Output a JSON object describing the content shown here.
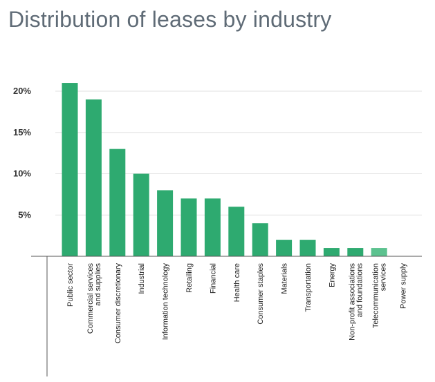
{
  "chart_data": {
    "type": "bar",
    "title": "Distribution of leases by industry",
    "xlabel": "",
    "ylabel": "",
    "ylim": [
      0,
      22
    ],
    "yticks": [
      {
        "value": 5,
        "label": "5%"
      },
      {
        "value": 10,
        "label": "10%"
      },
      {
        "value": 15,
        "label": "15%"
      },
      {
        "value": 20,
        "label": "20%"
      }
    ],
    "grid": true,
    "categories": [
      [
        "Public sector"
      ],
      [
        "Commercial services",
        "and supplies"
      ],
      [
        "Consumer discretionary"
      ],
      [
        "Industrial"
      ],
      [
        "Information technology"
      ],
      [
        "Retailing"
      ],
      [
        "Financial"
      ],
      [
        "Health care"
      ],
      [
        "Consumer staples"
      ],
      [
        "Materials"
      ],
      [
        "Transportation"
      ],
      [
        "Energy"
      ],
      [
        "Non-profit associations",
        "and foundations"
      ],
      [
        "Telecommunication",
        "services"
      ],
      [
        "Power supply"
      ]
    ],
    "values": [
      21,
      19,
      13,
      10,
      8,
      7,
      7,
      6,
      4,
      2,
      2,
      1,
      1,
      1,
      0
    ],
    "colors": {
      "bar": "#2eaa70",
      "bar_highlight": "#5cc28f",
      "grid": "#e2e2e2",
      "axis": "#555555"
    },
    "highlight_index": 13
  }
}
